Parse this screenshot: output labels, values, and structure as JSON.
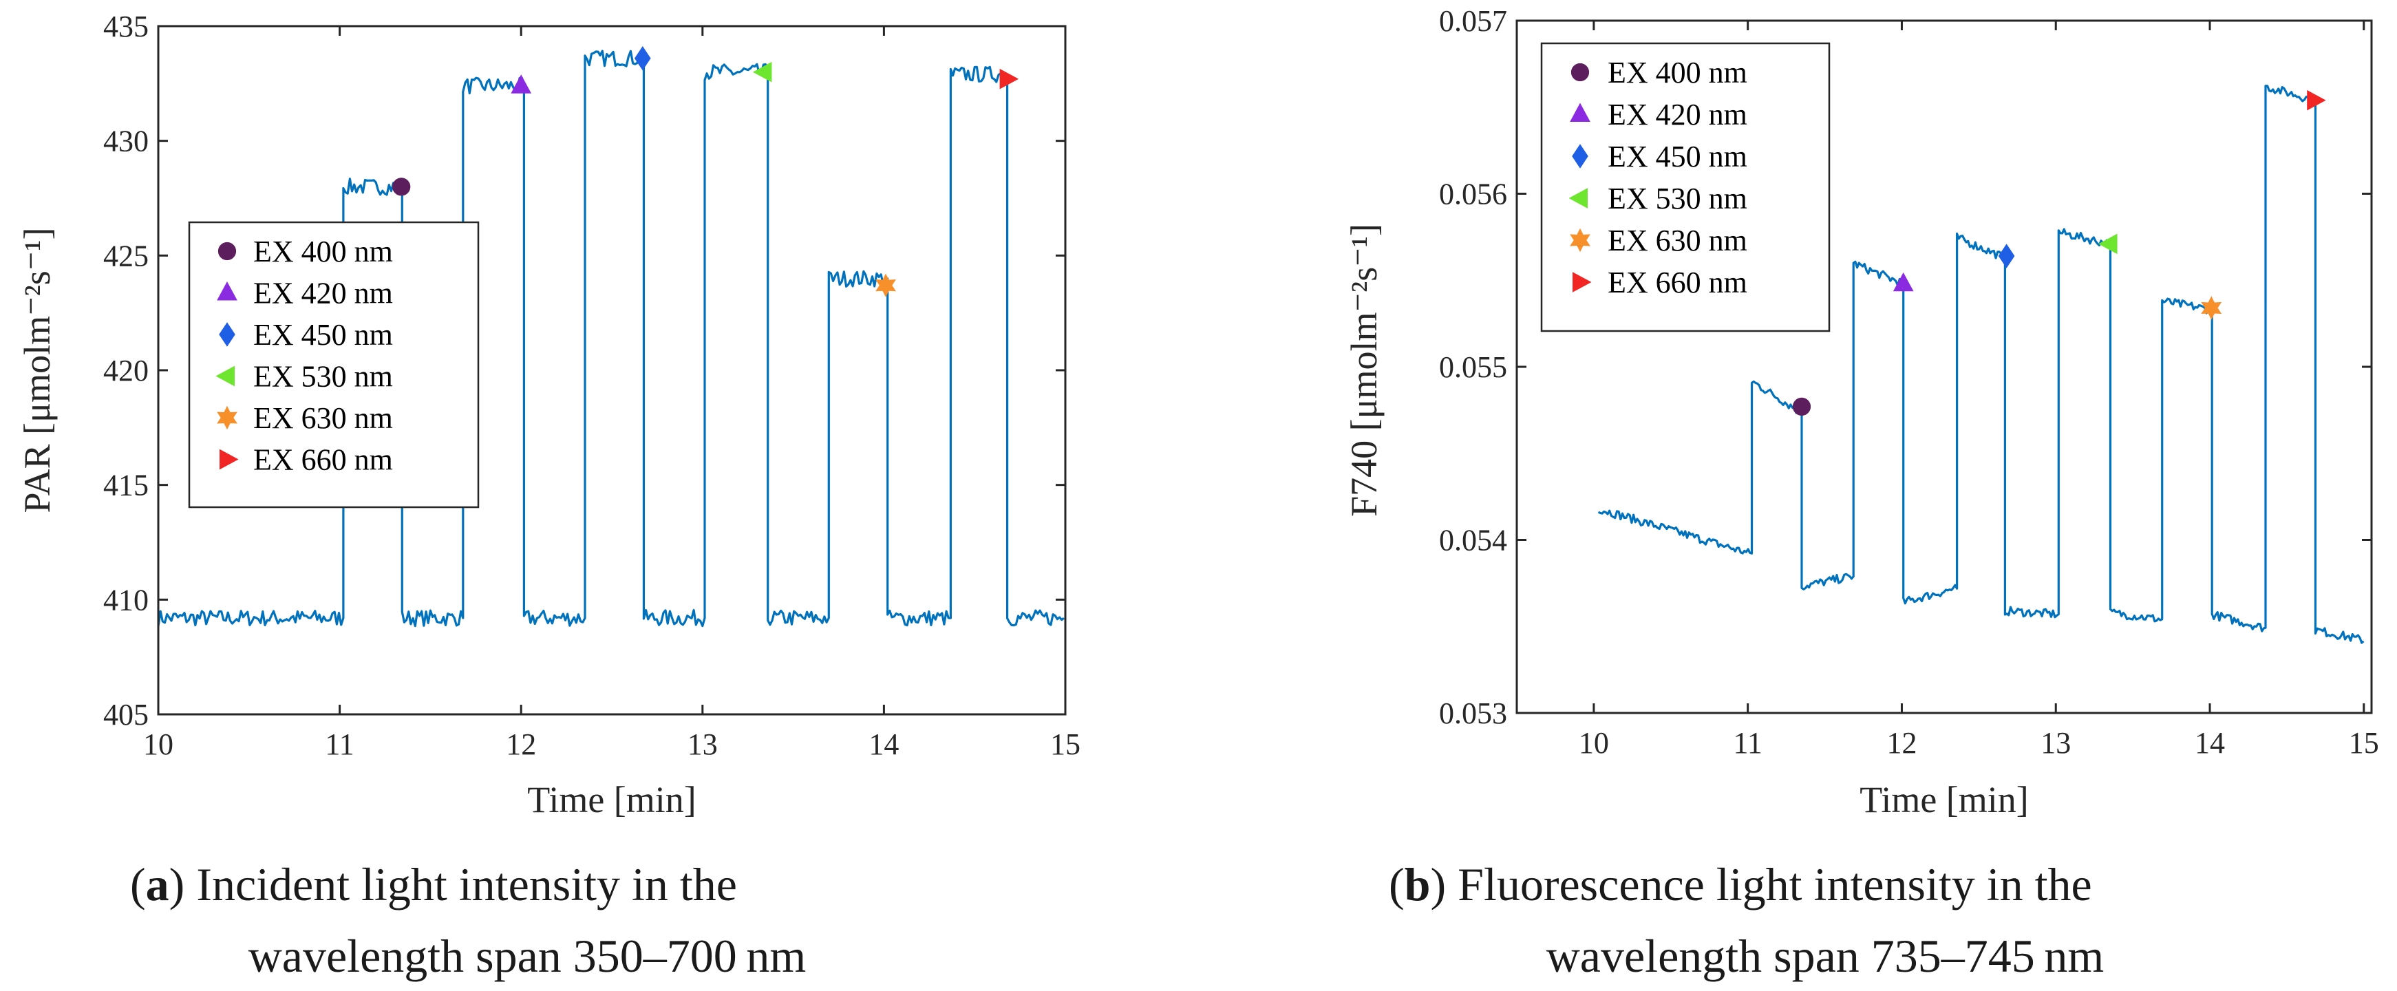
{
  "chart_data": [
    {
      "type": "line",
      "xlabel": "Time [min]",
      "ylabel": "PAR [μmolm⁻²s⁻¹]",
      "xlim": [
        10,
        15
      ],
      "ylim": [
        405,
        435
      ],
      "xticks": [
        "10",
        "11",
        "12",
        "13",
        "14",
        "15"
      ],
      "yticks": [
        "405",
        "410",
        "415",
        "420",
        "425",
        "430",
        "435"
      ],
      "grid": false,
      "legend_position": "center-left",
      "caption_letter": "a",
      "caption_rest_line1": " Incident light intensity in the",
      "caption_line2": "wavelength span 350–700 nm",
      "trace": {
        "baseline": 409.2,
        "start_x": 10.0,
        "end_x": 15.0,
        "noise": 0.35,
        "pulses": [
          {
            "x0": 11.02,
            "x1": 11.34,
            "level": 428.0
          },
          {
            "x0": 11.68,
            "x1": 12.01,
            "level": 432.4
          },
          {
            "x0": 12.35,
            "x1": 12.67,
            "level": 433.6
          },
          {
            "x0": 13.01,
            "x1": 13.35,
            "level": 433.0
          },
          {
            "x0": 13.69,
            "x1": 14.01,
            "level": 424.0
          },
          {
            "x0": 14.36,
            "x1": 14.68,
            "level": 432.9
          }
        ]
      },
      "series": [
        {
          "name": "EX 400 nm",
          "color": "#5C1E5C",
          "marker": "circle",
          "x": 11.34,
          "y": 428.0
        },
        {
          "name": "EX 420 nm",
          "color": "#8A2BE2",
          "marker": "triangle-up",
          "x": 12.0,
          "y": 432.4
        },
        {
          "name": "EX 450 nm",
          "color": "#1F5FE6",
          "marker": "diamond",
          "x": 12.67,
          "y": 433.6
        },
        {
          "name": "EX 530 nm",
          "color": "#6EE52E",
          "marker": "triangle-left",
          "x": 13.34,
          "y": 433.0
        },
        {
          "name": "EX 630 nm",
          "color": "#F7902A",
          "marker": "hexagram",
          "x": 14.01,
          "y": 423.7
        },
        {
          "name": "EX 660 nm",
          "color": "#F22525",
          "marker": "triangle-right",
          "x": 14.68,
          "y": 432.7
        }
      ]
    },
    {
      "type": "line",
      "xlabel": "Time [min]",
      "ylabel": "F740 [μmolm⁻²s⁻¹]",
      "xlim": [
        9.5,
        15.05
      ],
      "ylim": [
        0.053,
        0.057
      ],
      "xticks": [
        "10",
        "11",
        "12",
        "13",
        "14",
        "15"
      ],
      "yticks": [
        "0.053",
        "0.054",
        "0.055",
        "0.056",
        "0.057"
      ],
      "grid": false,
      "legend_position": "top-left",
      "caption_letter": "b",
      "caption_rest_line1": " Fluorescence light intensity in the",
      "caption_line2": "wavelength span 735–745 nm",
      "trace": {
        "start_x": 10.03,
        "end_x": 15.0,
        "noise": 2.5e-05,
        "segments": [
          {
            "x0": 10.03,
            "x1": 11.02,
            "y0": 0.05418,
            "y1": 0.05392
          },
          {
            "x0": 11.02,
            "x1": 11.34,
            "y0": 0.05492,
            "y1": 0.05474
          },
          {
            "x0": 11.34,
            "x1": 11.68,
            "y0": 0.05373,
            "y1": 0.05379
          },
          {
            "x0": 11.68,
            "x1": 12.01,
            "y0": 0.0556,
            "y1": 0.05548
          },
          {
            "x0": 12.01,
            "x1": 12.35,
            "y0": 0.05364,
            "y1": 0.05372
          },
          {
            "x0": 12.35,
            "x1": 12.67,
            "y0": 0.05575,
            "y1": 0.05563
          },
          {
            "x0": 12.67,
            "x1": 13.01,
            "y0": 0.05359,
            "y1": 0.05357
          },
          {
            "x0": 13.01,
            "x1": 13.35,
            "y0": 0.05578,
            "y1": 0.05571
          },
          {
            "x0": 13.35,
            "x1": 13.69,
            "y0": 0.05358,
            "y1": 0.05354
          },
          {
            "x0": 13.69,
            "x1": 14.01,
            "y0": 0.05538,
            "y1": 0.05533
          },
          {
            "x0": 14.01,
            "x1": 14.36,
            "y0": 0.05357,
            "y1": 0.05349
          },
          {
            "x0": 14.36,
            "x1": 14.68,
            "y0": 0.05662,
            "y1": 0.05654
          },
          {
            "x0": 14.68,
            "x1": 15.0,
            "y0": 0.05348,
            "y1": 0.05342
          }
        ]
      },
      "series": [
        {
          "name": "EX 400 nm",
          "color": "#5C1E5C",
          "marker": "circle",
          "x": 11.35,
          "y": 0.05477
        },
        {
          "name": "EX 420 nm",
          "color": "#8A2BE2",
          "marker": "triangle-up",
          "x": 12.01,
          "y": 0.05548
        },
        {
          "name": "EX 450 nm",
          "color": "#1F5FE6",
          "marker": "diamond",
          "x": 12.68,
          "y": 0.05564
        },
        {
          "name": "EX 530 nm",
          "color": "#6EE52E",
          "marker": "triangle-left",
          "x": 13.35,
          "y": 0.05571
        },
        {
          "name": "EX 630 nm",
          "color": "#F7902A",
          "marker": "hexagram",
          "x": 14.01,
          "y": 0.05534
        },
        {
          "name": "EX 660 nm",
          "color": "#F22525",
          "marker": "triangle-right",
          "x": 14.68,
          "y": 0.05654
        }
      ]
    }
  ]
}
